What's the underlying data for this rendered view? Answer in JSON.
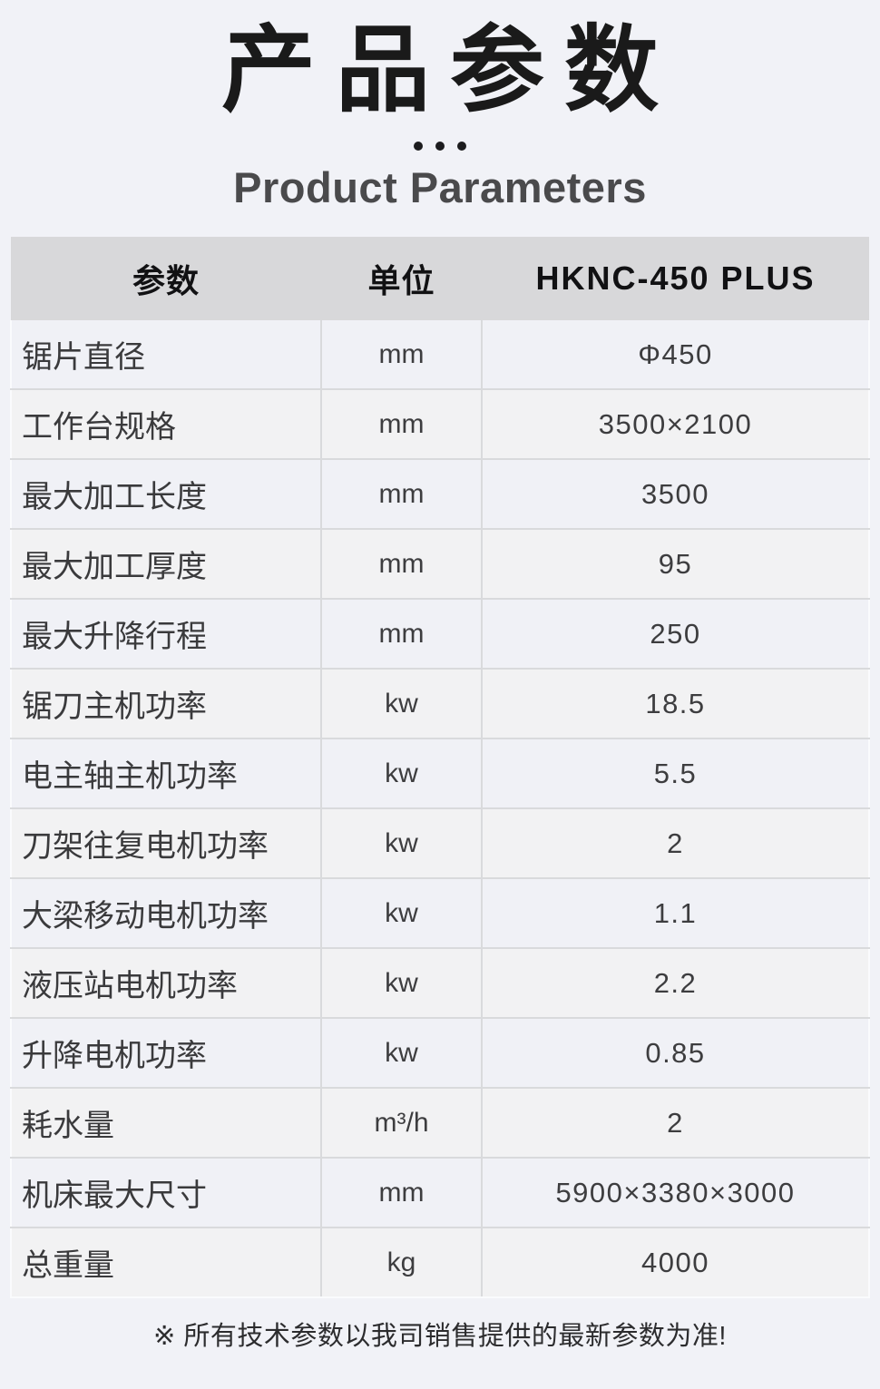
{
  "header": {
    "title_zh": "产品参数",
    "title_en": "Product Parameters"
  },
  "table": {
    "columns": [
      "参数",
      "单位",
      "HKNC-450 PLUS"
    ],
    "rows": [
      {
        "param": "锯片直径",
        "unit": "mm",
        "value": "Φ450"
      },
      {
        "param": "工作台规格",
        "unit": "mm",
        "value": "3500×2100"
      },
      {
        "param": "最大加工长度",
        "unit": "mm",
        "value": "3500"
      },
      {
        "param": "最大加工厚度",
        "unit": "mm",
        "value": "95"
      },
      {
        "param": "最大升降行程",
        "unit": "mm",
        "value": "250"
      },
      {
        "param": "锯刀主机功率",
        "unit": "kw",
        "value": "18.5"
      },
      {
        "param": "电主轴主机功率",
        "unit": "kw",
        "value": "5.5"
      },
      {
        "param": "刀架往复电机功率",
        "unit": "kw",
        "value": "2"
      },
      {
        "param": "大梁移动电机功率",
        "unit": "kw",
        "value": "1.1"
      },
      {
        "param": "液压站电机功率",
        "unit": "kw",
        "value": "2.2"
      },
      {
        "param": "升降电机功率",
        "unit": "kw",
        "value": "0.85"
      },
      {
        "param": "耗水量",
        "unit": "m³/h",
        "value": "2"
      },
      {
        "param": "机床最大尺寸",
        "unit": "mm",
        "value": "5900×3380×3000"
      },
      {
        "param": "总重量",
        "unit": "kg",
        "value": "4000"
      }
    ]
  },
  "footnote": "※ 所有技术参数以我司销售提供的最新参数为准!",
  "colors": {
    "page_bg": "#f1f2f7",
    "table_header_bg": "#d8d8da",
    "row_bg_odd": "#f0f1f6",
    "row_bg_even": "#f2f2f3",
    "grid_line": "#d9dadc",
    "title_text": "#1a1a1a",
    "subtitle_text": "#4a4a4c",
    "body_text": "#3a3a3c"
  }
}
